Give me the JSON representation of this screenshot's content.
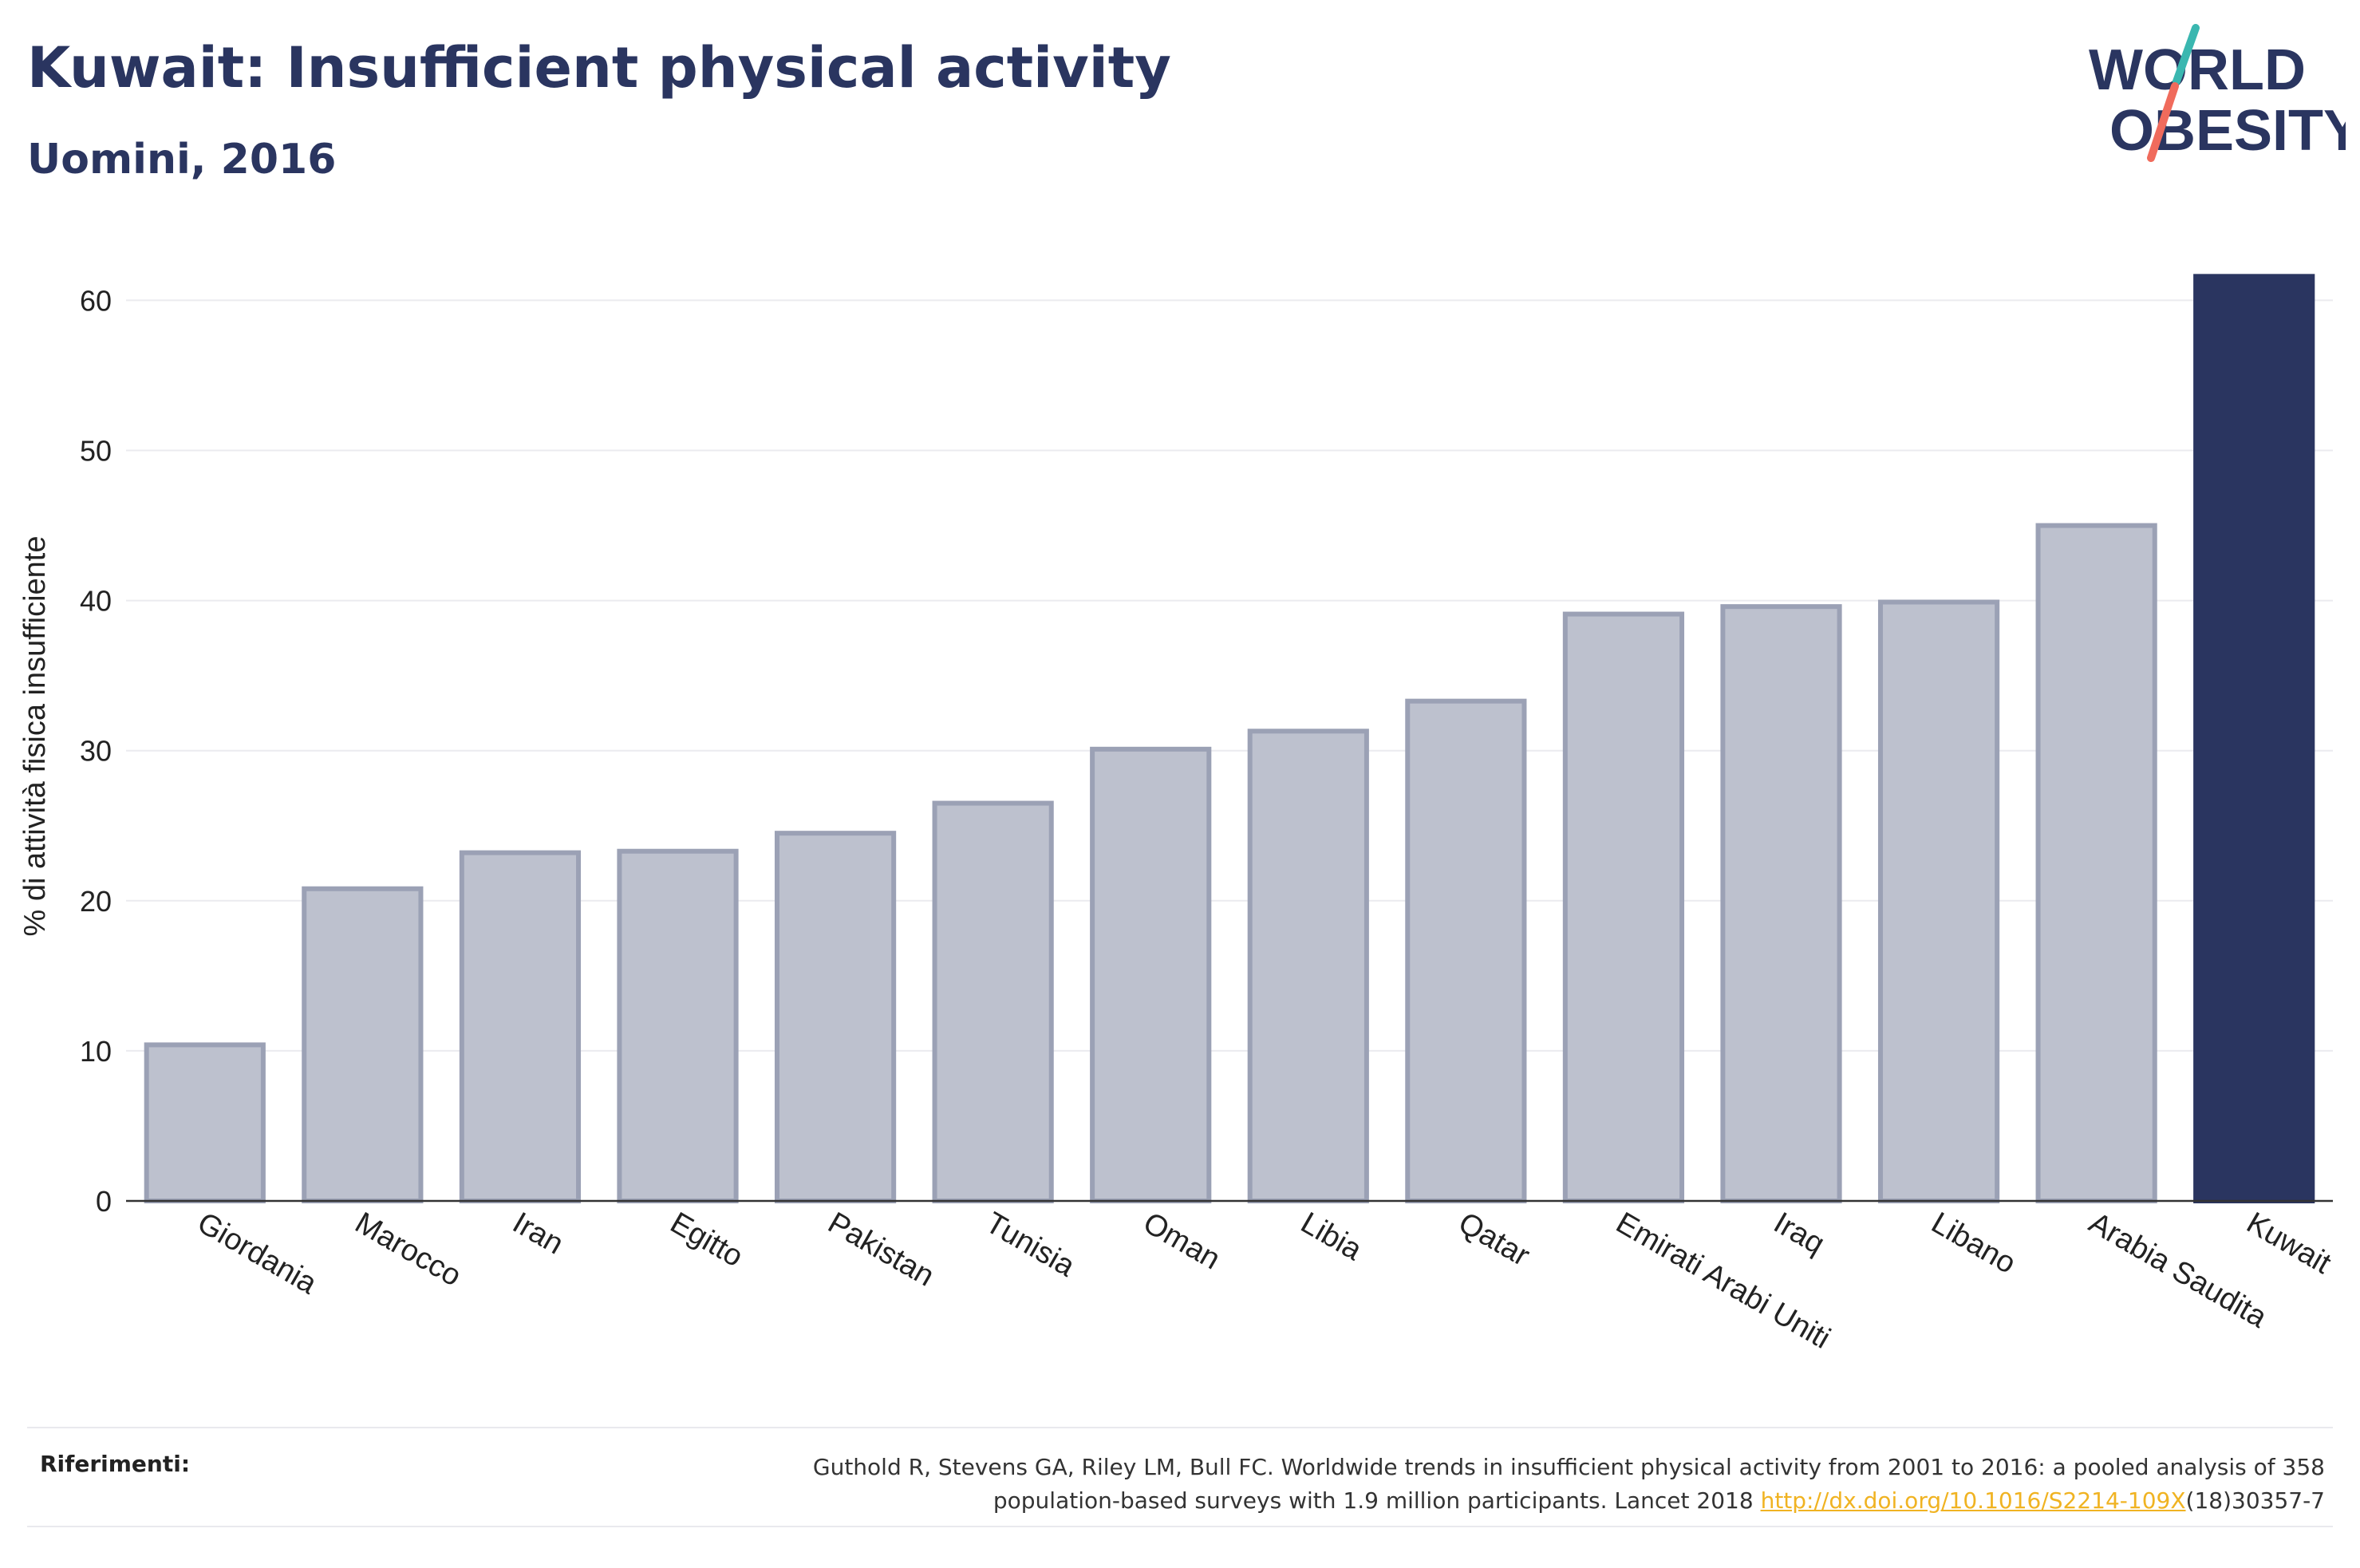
{
  "header": {
    "title": "Kuwait: Insufficient physical activity",
    "subtitle": "Uomini, 2016"
  },
  "logo": {
    "line1": "WORLD",
    "line2": "OBESITY",
    "colors": {
      "text": "#2a3560",
      "slash_top": "#3ab7b0",
      "slash_bottom": "#f06b5c"
    }
  },
  "chart_data": {
    "type": "bar",
    "title": "",
    "xlabel": "",
    "ylabel": "% di attività fisica insufficiente",
    "ylim": [
      0,
      63
    ],
    "yticks": [
      0,
      10,
      20,
      30,
      40,
      50,
      60
    ],
    "grid": true,
    "legend": "none",
    "categories": [
      "Giordania",
      "Marocco",
      "Iran",
      "Egitto",
      "Pakistan",
      "Tunisia",
      "Oman",
      "Libia",
      "Qatar",
      "Emirati Arabi Uniti",
      "Iraq",
      "Libano",
      "Arabia Saudita",
      "Kuwait"
    ],
    "values": [
      10.4,
      20.8,
      23.2,
      23.3,
      24.5,
      26.5,
      30.1,
      31.3,
      33.3,
      39.1,
      39.6,
      39.9,
      45.0,
      61.6
    ],
    "highlight": "Kuwait",
    "colors": {
      "bar": "#bdc1ce",
      "bar_border": "#9ba1b5",
      "highlight": "#2a3560",
      "grid": "#ebebef",
      "axis": "#333333"
    }
  },
  "references": {
    "label": "Riferimenti:",
    "line1": "Guthold R, Stevens GA, Riley LM, Bull FC. Worldwide trends in insufficient physical activity from 2001 to 2016: a pooled analysis of 358",
    "line2_before": "population-based surveys with 1.9 million participants. Lancet 2018 ",
    "link": "http://dx.doi.org/10.1016/S2214-109X",
    "line2_after": "(18)30357-7"
  }
}
